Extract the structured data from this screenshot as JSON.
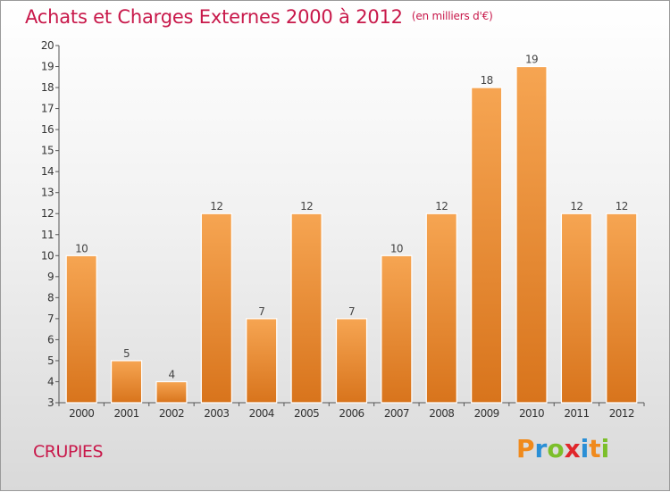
{
  "header": {
    "title": "Achats et Charges Externes 2000 à 2012",
    "unit": "(en milliers d'€)"
  },
  "commune": "CRUPIES",
  "logo": {
    "text": "Proxiti",
    "letters": [
      "P",
      "r",
      "o",
      "x",
      "i",
      "t",
      "i"
    ],
    "colors": [
      "#f08a1c",
      "#2a8fd6",
      "#7cbf2a",
      "#e0262b",
      "#2a8fd6",
      "#f08a1c",
      "#7cbf2a"
    ]
  },
  "chart_data": {
    "type": "bar",
    "categories": [
      "2000",
      "2001",
      "2002",
      "2003",
      "2004",
      "2005",
      "2006",
      "2007",
      "2008",
      "2009",
      "2010",
      "2011",
      "2012"
    ],
    "values": [
      10,
      5,
      4,
      12,
      7,
      12,
      7,
      10,
      12,
      18,
      19,
      12,
      12
    ],
    "data_labels": [
      "10",
      "5",
      "4",
      "12",
      "7",
      "12",
      "7",
      "10",
      "12",
      "18",
      "19",
      "12",
      "12"
    ],
    "title": "Achats et Charges Externes 2000 à 2012",
    "xlabel": "",
    "ylabel": "",
    "ylim": [
      3,
      20
    ],
    "yticks": [
      "3",
      "4",
      "5",
      "6",
      "7",
      "8",
      "9",
      "10",
      "11",
      "12",
      "13",
      "14",
      "15",
      "16",
      "17",
      "18",
      "19",
      "20"
    ],
    "grid": false,
    "bar_color_top": "#f6a552",
    "bar_color_bottom": "#d8741c"
  }
}
